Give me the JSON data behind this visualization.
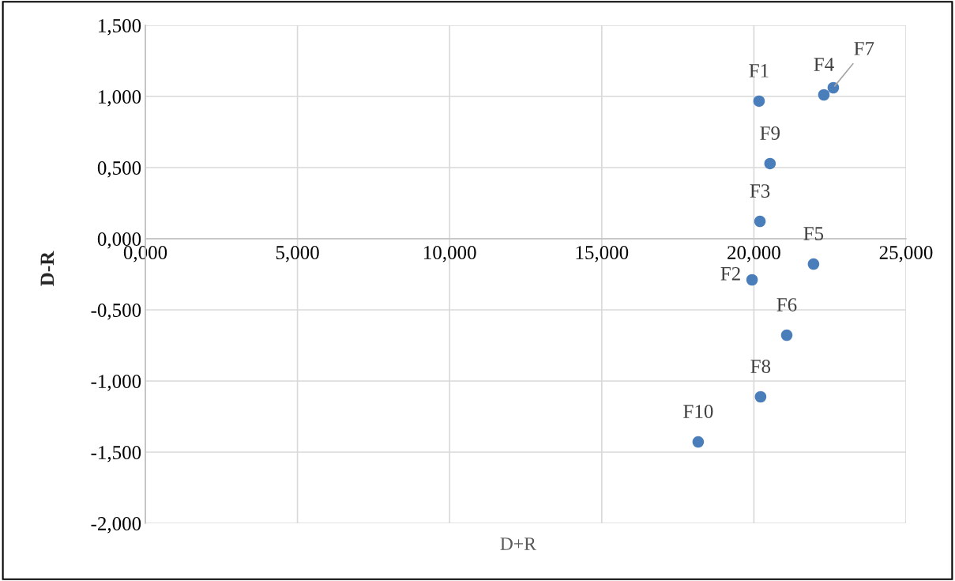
{
  "chart_data": {
    "type": "scatter",
    "xlabel": "D+R",
    "ylabel": "D-R",
    "x": [
      20.17,
      19.94,
      20.2,
      22.3,
      21.96,
      21.08,
      22.61,
      20.22,
      20.53,
      18.17
    ],
    "series": [
      {
        "color": "#4a7ebb",
        "values": [
          0.967,
          -0.289,
          0.122,
          1.011,
          -0.178,
          -0.678,
          1.061,
          -1.111,
          0.528,
          -1.428
        ]
      }
    ],
    "annotations": [
      {
        "text": "F1",
        "x": 20.17,
        "y": 0.967
      },
      {
        "text": "F2",
        "x": 19.94,
        "y": -0.289
      },
      {
        "text": "F3",
        "x": 20.2,
        "y": 0.122
      },
      {
        "text": "F4",
        "x": 22.3,
        "y": 1.011
      },
      {
        "text": "F5",
        "x": 21.96,
        "y": -0.178
      },
      {
        "text": "F6",
        "x": 21.08,
        "y": -0.678
      },
      {
        "text": "F7",
        "x": 22.61,
        "y": 1.061
      },
      {
        "text": "F8",
        "x": 20.22,
        "y": -1.111
      },
      {
        "text": "F9",
        "x": 20.53,
        "y": 0.528
      },
      {
        "text": "F10",
        "x": 18.17,
        "y": -1.428
      }
    ],
    "xlim": [
      0,
      25
    ],
    "ylim": [
      -2,
      1.5
    ],
    "xticks": [
      {
        "value": 0,
        "label": "0,000"
      },
      {
        "value": 5,
        "label": "5,000"
      },
      {
        "value": 10,
        "label": "10,000"
      },
      {
        "value": 15,
        "label": "15,000"
      },
      {
        "value": 20,
        "label": "20,000"
      },
      {
        "value": 25,
        "label": "25,000"
      }
    ],
    "yticks": [
      {
        "value": -2,
        "label": "-2,000"
      },
      {
        "value": -1.5,
        "label": "-1,500"
      },
      {
        "value": -1,
        "label": "-1,000"
      },
      {
        "value": -0.5,
        "label": "-0,500"
      },
      {
        "value": 0,
        "label": "0,000"
      },
      {
        "value": 0.5,
        "label": "0,500"
      },
      {
        "value": 1,
        "label": "1,000"
      },
      {
        "value": 1.5,
        "label": "1,500"
      }
    ],
    "grid": true,
    "marker": "circle",
    "legend": false
  }
}
